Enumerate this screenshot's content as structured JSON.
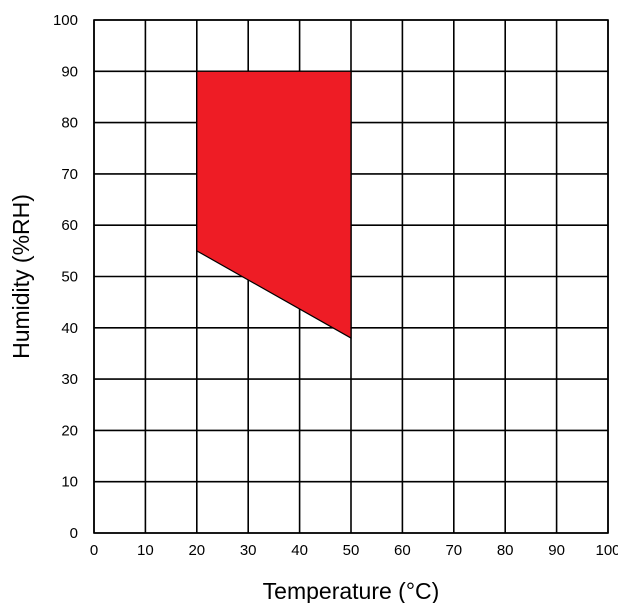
{
  "chart_data": {
    "type": "area",
    "title": "",
    "xlabel": "Temperature (°C)",
    "ylabel": "Humidity (%RH)",
    "xlim": [
      0,
      100
    ],
    "ylim": [
      0,
      100
    ],
    "x_ticks": [
      0,
      10,
      20,
      30,
      40,
      50,
      60,
      70,
      80,
      90,
      100
    ],
    "y_ticks": [
      0,
      10,
      20,
      30,
      40,
      50,
      60,
      70,
      80,
      90,
      100
    ],
    "grid": true,
    "series": [
      {
        "polygon": [
          {
            "x": 20,
            "y": 90
          },
          {
            "x": 50,
            "y": 90
          },
          {
            "x": 50,
            "y": 38
          },
          {
            "x": 20,
            "y": 55
          }
        ],
        "color": "#ee1c25"
      }
    ]
  }
}
